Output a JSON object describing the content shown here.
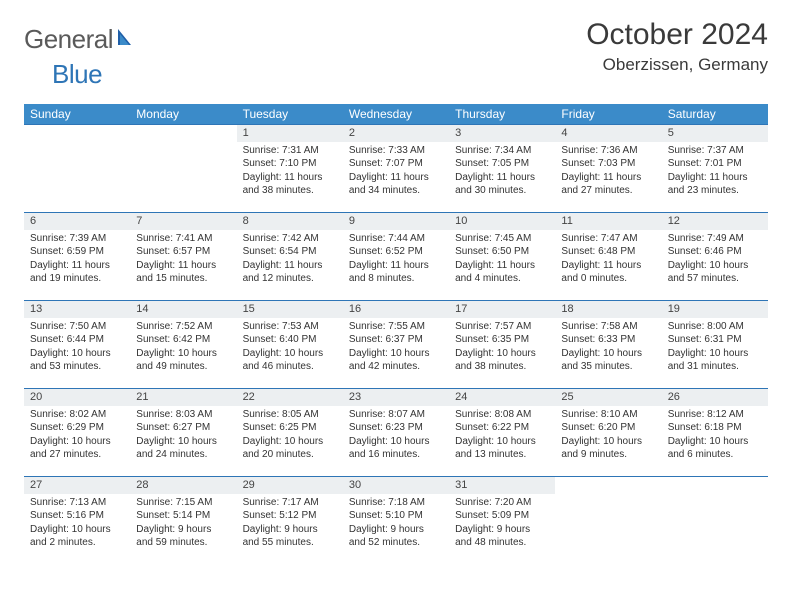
{
  "logo": {
    "text1": "General",
    "text2": "Blue"
  },
  "title": "October 2024",
  "location": "Oberzissen, Germany",
  "colors": {
    "header_bg": "#3b8bc9",
    "header_text": "#ffffff",
    "border": "#2e75b6",
    "daynum_bg": "#eceff1",
    "logo_gray": "#5a5a5a",
    "logo_blue": "#2e75b6"
  },
  "weekdays": [
    "Sunday",
    "Monday",
    "Tuesday",
    "Wednesday",
    "Thursday",
    "Friday",
    "Saturday"
  ],
  "weeks": [
    [
      null,
      null,
      {
        "n": "1",
        "sr": "Sunrise: 7:31 AM",
        "ss": "Sunset: 7:10 PM",
        "dl": "Daylight: 11 hours and 38 minutes."
      },
      {
        "n": "2",
        "sr": "Sunrise: 7:33 AM",
        "ss": "Sunset: 7:07 PM",
        "dl": "Daylight: 11 hours and 34 minutes."
      },
      {
        "n": "3",
        "sr": "Sunrise: 7:34 AM",
        "ss": "Sunset: 7:05 PM",
        "dl": "Daylight: 11 hours and 30 minutes."
      },
      {
        "n": "4",
        "sr": "Sunrise: 7:36 AM",
        "ss": "Sunset: 7:03 PM",
        "dl": "Daylight: 11 hours and 27 minutes."
      },
      {
        "n": "5",
        "sr": "Sunrise: 7:37 AM",
        "ss": "Sunset: 7:01 PM",
        "dl": "Daylight: 11 hours and 23 minutes."
      }
    ],
    [
      {
        "n": "6",
        "sr": "Sunrise: 7:39 AM",
        "ss": "Sunset: 6:59 PM",
        "dl": "Daylight: 11 hours and 19 minutes."
      },
      {
        "n": "7",
        "sr": "Sunrise: 7:41 AM",
        "ss": "Sunset: 6:57 PM",
        "dl": "Daylight: 11 hours and 15 minutes."
      },
      {
        "n": "8",
        "sr": "Sunrise: 7:42 AM",
        "ss": "Sunset: 6:54 PM",
        "dl": "Daylight: 11 hours and 12 minutes."
      },
      {
        "n": "9",
        "sr": "Sunrise: 7:44 AM",
        "ss": "Sunset: 6:52 PM",
        "dl": "Daylight: 11 hours and 8 minutes."
      },
      {
        "n": "10",
        "sr": "Sunrise: 7:45 AM",
        "ss": "Sunset: 6:50 PM",
        "dl": "Daylight: 11 hours and 4 minutes."
      },
      {
        "n": "11",
        "sr": "Sunrise: 7:47 AM",
        "ss": "Sunset: 6:48 PM",
        "dl": "Daylight: 11 hours and 0 minutes."
      },
      {
        "n": "12",
        "sr": "Sunrise: 7:49 AM",
        "ss": "Sunset: 6:46 PM",
        "dl": "Daylight: 10 hours and 57 minutes."
      }
    ],
    [
      {
        "n": "13",
        "sr": "Sunrise: 7:50 AM",
        "ss": "Sunset: 6:44 PM",
        "dl": "Daylight: 10 hours and 53 minutes."
      },
      {
        "n": "14",
        "sr": "Sunrise: 7:52 AM",
        "ss": "Sunset: 6:42 PM",
        "dl": "Daylight: 10 hours and 49 minutes."
      },
      {
        "n": "15",
        "sr": "Sunrise: 7:53 AM",
        "ss": "Sunset: 6:40 PM",
        "dl": "Daylight: 10 hours and 46 minutes."
      },
      {
        "n": "16",
        "sr": "Sunrise: 7:55 AM",
        "ss": "Sunset: 6:37 PM",
        "dl": "Daylight: 10 hours and 42 minutes."
      },
      {
        "n": "17",
        "sr": "Sunrise: 7:57 AM",
        "ss": "Sunset: 6:35 PM",
        "dl": "Daylight: 10 hours and 38 minutes."
      },
      {
        "n": "18",
        "sr": "Sunrise: 7:58 AM",
        "ss": "Sunset: 6:33 PM",
        "dl": "Daylight: 10 hours and 35 minutes."
      },
      {
        "n": "19",
        "sr": "Sunrise: 8:00 AM",
        "ss": "Sunset: 6:31 PM",
        "dl": "Daylight: 10 hours and 31 minutes."
      }
    ],
    [
      {
        "n": "20",
        "sr": "Sunrise: 8:02 AM",
        "ss": "Sunset: 6:29 PM",
        "dl": "Daylight: 10 hours and 27 minutes."
      },
      {
        "n": "21",
        "sr": "Sunrise: 8:03 AM",
        "ss": "Sunset: 6:27 PM",
        "dl": "Daylight: 10 hours and 24 minutes."
      },
      {
        "n": "22",
        "sr": "Sunrise: 8:05 AM",
        "ss": "Sunset: 6:25 PM",
        "dl": "Daylight: 10 hours and 20 minutes."
      },
      {
        "n": "23",
        "sr": "Sunrise: 8:07 AM",
        "ss": "Sunset: 6:23 PM",
        "dl": "Daylight: 10 hours and 16 minutes."
      },
      {
        "n": "24",
        "sr": "Sunrise: 8:08 AM",
        "ss": "Sunset: 6:22 PM",
        "dl": "Daylight: 10 hours and 13 minutes."
      },
      {
        "n": "25",
        "sr": "Sunrise: 8:10 AM",
        "ss": "Sunset: 6:20 PM",
        "dl": "Daylight: 10 hours and 9 minutes."
      },
      {
        "n": "26",
        "sr": "Sunrise: 8:12 AM",
        "ss": "Sunset: 6:18 PM",
        "dl": "Daylight: 10 hours and 6 minutes."
      }
    ],
    [
      {
        "n": "27",
        "sr": "Sunrise: 7:13 AM",
        "ss": "Sunset: 5:16 PM",
        "dl": "Daylight: 10 hours and 2 minutes."
      },
      {
        "n": "28",
        "sr": "Sunrise: 7:15 AM",
        "ss": "Sunset: 5:14 PM",
        "dl": "Daylight: 9 hours and 59 minutes."
      },
      {
        "n": "29",
        "sr": "Sunrise: 7:17 AM",
        "ss": "Sunset: 5:12 PM",
        "dl": "Daylight: 9 hours and 55 minutes."
      },
      {
        "n": "30",
        "sr": "Sunrise: 7:18 AM",
        "ss": "Sunset: 5:10 PM",
        "dl": "Daylight: 9 hours and 52 minutes."
      },
      {
        "n": "31",
        "sr": "Sunrise: 7:20 AM",
        "ss": "Sunset: 5:09 PM",
        "dl": "Daylight: 9 hours and 48 minutes."
      },
      null,
      null
    ]
  ]
}
